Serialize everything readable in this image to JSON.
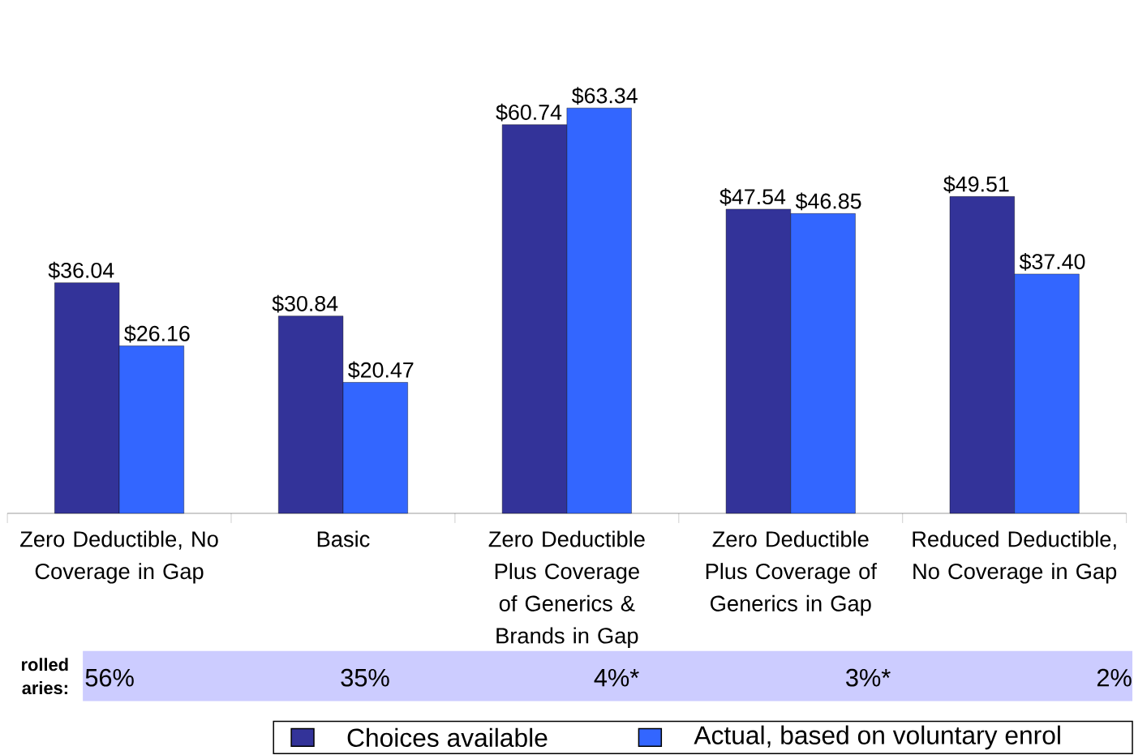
{
  "chart_data": {
    "type": "bar",
    "categories": [
      "Zero Deductible, No Coverage in Gap",
      "Basic",
      "Zero Deductible Plus Coverage of Generics & Brands in Gap",
      "Zero Deductible Plus Coverage of Generics in Gap",
      "Reduced Deductible, No Coverage in Gap"
    ],
    "series": [
      {
        "name": "Choices available",
        "color": "#333399",
        "values": [
          36.04,
          30.84,
          60.74,
          47.54,
          49.51
        ],
        "value_labels": [
          "$36.04",
          "$30.84",
          "$60.74",
          "$47.54",
          "$49.51"
        ]
      },
      {
        "name": "Actual, based on voluntary enrol",
        "color": "#3366ff",
        "values": [
          26.16,
          20.47,
          63.34,
          46.85,
          37.4
        ],
        "value_labels": [
          "$26.16",
          "$20.47",
          "$63.34",
          "$46.85",
          "$37.40"
        ]
      }
    ],
    "legend": "bottom",
    "annotations": [
      "rolled aries:",
      "56%",
      "35%",
      "4%*",
      "3%*",
      "2%"
    ]
  }
}
